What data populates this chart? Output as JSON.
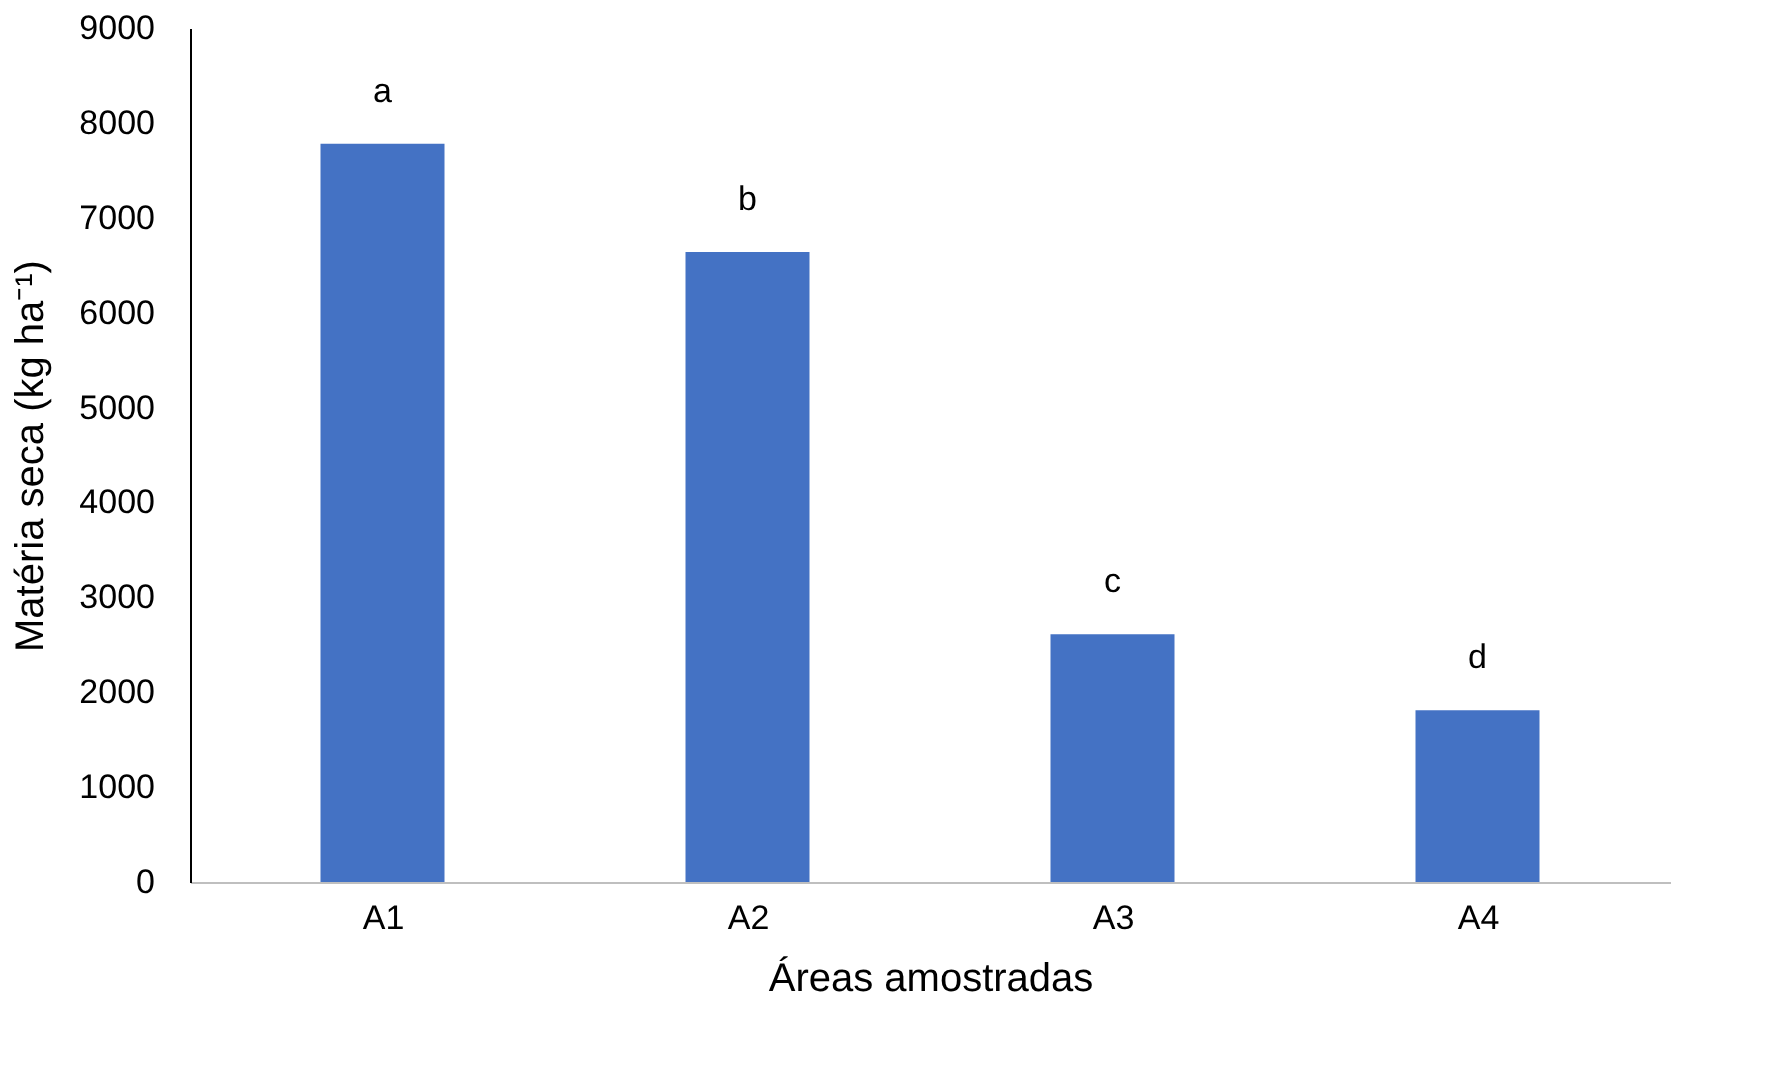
{
  "chart_data": {
    "type": "bar",
    "xlabel": "Áreas amostradas",
    "ylabel": "Matéria seca (kg ha⁻¹)",
    "categories": [
      "A1",
      "A2",
      "A3",
      "A4"
    ],
    "values": [
      7780,
      6640,
      2610,
      1810
    ],
    "color": "#4472c4",
    "ylim": [
      0,
      9000
    ],
    "yticks": [
      0,
      1000,
      2000,
      3000,
      4000,
      5000,
      6000,
      7000,
      8000,
      9000
    ],
    "grid": false,
    "annotations": [
      {
        "text": "a",
        "x": "A1",
        "y": 7780
      },
      {
        "text": "b",
        "x": "A2",
        "y": 6640
      },
      {
        "text": "c",
        "x": "A3",
        "y": 2610
      },
      {
        "text": "d",
        "x": "A4",
        "y": 1810
      }
    ]
  }
}
